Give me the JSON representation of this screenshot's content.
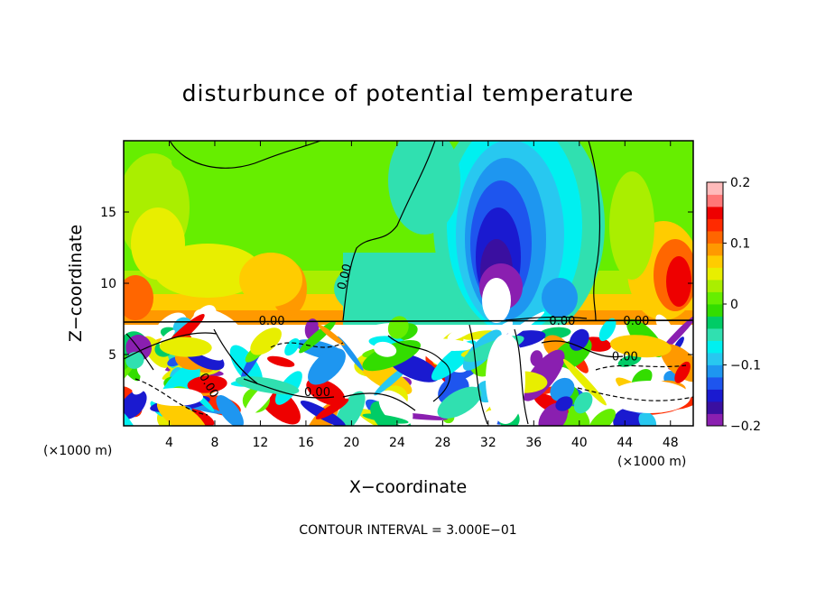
{
  "chart_data": {
    "type": "heatmap",
    "title": "disturbunce of potential temperature",
    "xlabel": "X−coordinate",
    "ylabel": "Z−coordinate",
    "x_unit_label": "(×1000 m)",
    "x_range": [
      0,
      50
    ],
    "y_range": [
      0,
      20
    ],
    "x_ticks": [
      4,
      8,
      12,
      16,
      20,
      24,
      28,
      32,
      36,
      40,
      44,
      48
    ],
    "y_ticks": [
      5,
      10,
      15
    ],
    "colorbar": {
      "range": [
        -0.2,
        0.2
      ],
      "tick_values": [
        0.2,
        0.1,
        0,
        -0.1,
        -0.2
      ],
      "tick_labels": [
        "0.2",
        "0.1",
        "0",
        "−0.1",
        "−0.2"
      ],
      "colors": [
        "#8a1fb0",
        "#3a0fa0",
        "#1a1ad0",
        "#1e55ee",
        "#1e96f0",
        "#28c8f0",
        "#00f0f0",
        "#30e0b0",
        "#00cc66",
        "#33dd00",
        "#66ee00",
        "#aaee00",
        "#e8ee00",
        "#ffcc00",
        "#ff9900",
        "#ff6600",
        "#ff2a00",
        "#ee0000",
        "#ff7777",
        "#ffbbbb"
      ]
    },
    "contour_labels": [
      {
        "text": "0.00",
        "x": 19.7,
        "y": 10.4,
        "rotate": -76
      },
      {
        "text": "0.00",
        "x": 13.0,
        "y": 7.1,
        "rotate": 0
      },
      {
        "text": "0.00",
        "x": 17.0,
        "y": 2.1,
        "rotate": 0
      },
      {
        "text": "0.00",
        "x": 45.0,
        "y": 7.1,
        "rotate": 0
      },
      {
        "text": "0.00",
        "x": 44.0,
        "y": 4.6,
        "rotate": 0
      },
      {
        "text": "0.00",
        "x": 38.5,
        "y": 7.1,
        "rotate": 0
      },
      {
        "text": "0.00",
        "x": 7.2,
        "y": 2.7,
        "rotate": 60
      }
    ],
    "annotation": "CONTOUR INTERVAL = 3.000E−01"
  }
}
